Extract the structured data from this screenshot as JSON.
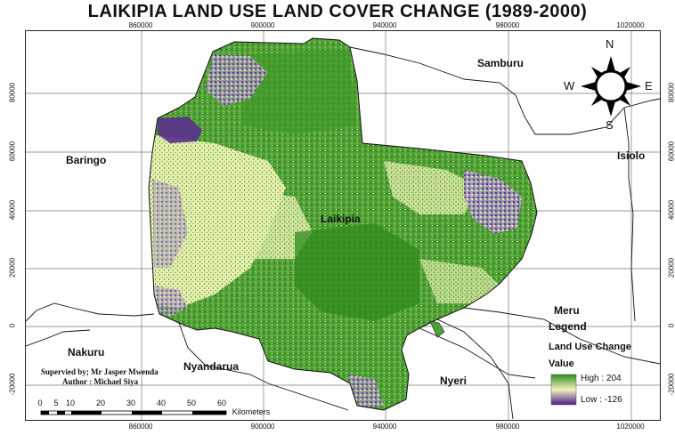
{
  "title": "LAIKIPIA LAND USE LAND COVER CHANGE (1989-2000)",
  "axes": {
    "x_ticks": [
      "860000",
      "900000",
      "940000",
      "980000",
      "1020000"
    ],
    "y_ticks": [
      "80000",
      "60000",
      "40000",
      "20000",
      "0",
      "-20000"
    ]
  },
  "places": {
    "samburu": "Samburu",
    "isiolo": "Isiolo",
    "baringo": "Baringo",
    "laikipia": "Laikipia",
    "meru": "Meru",
    "nakuru": "Nakuru",
    "nyandarua": "Nyandarua",
    "nyeri": "Nyeri"
  },
  "credits": {
    "supervisor": "Supervied by; Mr Jasper Mwenda",
    "author": "Author : Michael Siya"
  },
  "compass": {
    "n": "N",
    "s": "S",
    "e": "E",
    "w": "W"
  },
  "legend": {
    "title": "Legend",
    "subtitle": "Land Use Change",
    "value_label": "Value",
    "high": "High : 204",
    "low": "Low : -126",
    "colors": {
      "high": "#2e8b1e",
      "mid": "#f3f3bd",
      "low": "#4b1d8a"
    }
  },
  "scale_bar": {
    "labels": [
      "0",
      "5",
      "10",
      "20",
      "30",
      "40",
      "50",
      "60"
    ],
    "unit": "Kilometers"
  },
  "colors": {
    "dark_green": "#2f8a1c",
    "green": "#52a83a",
    "light_green": "#8dc66a",
    "cream": "#eef0b8",
    "purple": "#6a3f9c",
    "lavender": "#a993c6"
  }
}
